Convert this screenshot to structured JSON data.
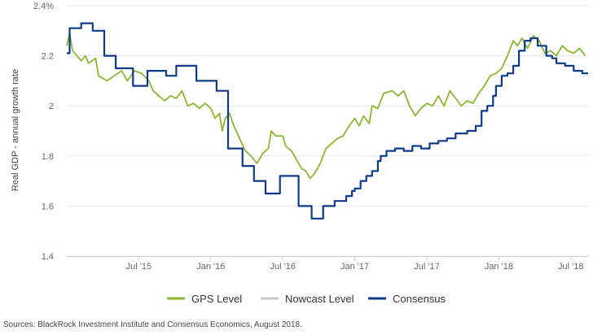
{
  "chart_data": {
    "type": "line",
    "title": "",
    "xlabel": "",
    "ylabel": "Real GDP - annual growth rate",
    "ylim": [
      1.4,
      2.4
    ],
    "xlim": [
      2015.0,
      2018.62
    ],
    "y_ticks": [
      1.4,
      1.6,
      1.8,
      2,
      2.2,
      2.4
    ],
    "y_tick_labels": [
      "1.4",
      "1.6",
      "1.8",
      "2",
      "2.2",
      "2.4%"
    ],
    "x_ticks": [
      {
        "x": 2015.5,
        "label": "Jul '15"
      },
      {
        "x": 2016.0,
        "label": "Jan '16"
      },
      {
        "x": 2016.5,
        "label": "Jul '16"
      },
      {
        "x": 2017.0,
        "label": "Jan '17"
      },
      {
        "x": 2017.5,
        "label": "Jul '17"
      },
      {
        "x": 2018.0,
        "label": "Jan '18"
      },
      {
        "x": 2018.5,
        "label": "Jul '18"
      }
    ],
    "grid": "horizontal",
    "legend_position": "bottom-center",
    "series": [
      {
        "name": "GPS Level",
        "color": "#8ab82e",
        "step": false,
        "points": [
          [
            2015.0,
            2.24
          ],
          [
            2015.02,
            2.29
          ],
          [
            2015.04,
            2.22
          ],
          [
            2015.07,
            2.2
          ],
          [
            2015.1,
            2.18
          ],
          [
            2015.13,
            2.2
          ],
          [
            2015.15,
            2.17
          ],
          [
            2015.2,
            2.19
          ],
          [
            2015.22,
            2.12
          ],
          [
            2015.28,
            2.1
          ],
          [
            2015.33,
            2.12
          ],
          [
            2015.38,
            2.14
          ],
          [
            2015.42,
            2.1
          ],
          [
            2015.47,
            2.14
          ],
          [
            2015.52,
            2.13
          ],
          [
            2015.57,
            2.1
          ],
          [
            2015.6,
            2.06
          ],
          [
            2015.64,
            2.04
          ],
          [
            2015.68,
            2.02
          ],
          [
            2015.72,
            2.04
          ],
          [
            2015.76,
            2.03
          ],
          [
            2015.8,
            2.06
          ],
          [
            2015.84,
            2.0
          ],
          [
            2015.88,
            2.01
          ],
          [
            2015.92,
            1.99
          ],
          [
            2015.96,
            2.01
          ],
          [
            2016.0,
            1.99
          ],
          [
            2016.03,
            1.95
          ],
          [
            2016.06,
            1.97
          ],
          [
            2016.08,
            1.9
          ],
          [
            2016.1,
            1.95
          ],
          [
            2016.13,
            1.97
          ],
          [
            2016.16,
            1.92
          ],
          [
            2016.2,
            1.87
          ],
          [
            2016.24,
            1.82
          ],
          [
            2016.28,
            1.8
          ],
          [
            2016.32,
            1.77
          ],
          [
            2016.36,
            1.81
          ],
          [
            2016.4,
            1.83
          ],
          [
            2016.42,
            1.9
          ],
          [
            2016.45,
            1.88
          ],
          [
            2016.5,
            1.88
          ],
          [
            2016.52,
            1.84
          ],
          [
            2016.56,
            1.82
          ],
          [
            2016.6,
            1.78
          ],
          [
            2016.63,
            1.75
          ],
          [
            2016.66,
            1.74
          ],
          [
            2016.69,
            1.71
          ],
          [
            2016.72,
            1.73
          ],
          [
            2016.76,
            1.77
          ],
          [
            2016.8,
            1.83
          ],
          [
            2016.84,
            1.85
          ],
          [
            2016.88,
            1.87
          ],
          [
            2016.92,
            1.88
          ],
          [
            2016.96,
            1.92
          ],
          [
            2017.0,
            1.95
          ],
          [
            2017.03,
            1.92
          ],
          [
            2017.06,
            1.96
          ],
          [
            2017.1,
            1.93
          ],
          [
            2017.12,
            2.0
          ],
          [
            2017.16,
            1.99
          ],
          [
            2017.2,
            2.05
          ],
          [
            2017.26,
            2.06
          ],
          [
            2017.3,
            2.04
          ],
          [
            2017.34,
            2.06
          ],
          [
            2017.38,
            2.0
          ],
          [
            2017.42,
            1.96
          ],
          [
            2017.46,
            1.99
          ],
          [
            2017.5,
            2.01
          ],
          [
            2017.54,
            2.0
          ],
          [
            2017.58,
            2.04
          ],
          [
            2017.62,
            2.0
          ],
          [
            2017.66,
            2.06
          ],
          [
            2017.7,
            2.03
          ],
          [
            2017.74,
            2.0
          ],
          [
            2017.78,
            2.02
          ],
          [
            2017.82,
            2.01
          ],
          [
            2017.86,
            2.05
          ],
          [
            2017.9,
            2.08
          ],
          [
            2017.94,
            2.12
          ],
          [
            2017.98,
            2.13
          ],
          [
            2018.02,
            2.15
          ],
          [
            2018.06,
            2.2
          ],
          [
            2018.1,
            2.26
          ],
          [
            2018.13,
            2.24
          ],
          [
            2018.16,
            2.27
          ],
          [
            2018.2,
            2.23
          ],
          [
            2018.24,
            2.28
          ],
          [
            2018.28,
            2.26
          ],
          [
            2018.32,
            2.21
          ],
          [
            2018.36,
            2.22
          ],
          [
            2018.4,
            2.2
          ],
          [
            2018.44,
            2.24
          ],
          [
            2018.48,
            2.22
          ],
          [
            2018.52,
            2.21
          ],
          [
            2018.56,
            2.23
          ],
          [
            2018.6,
            2.2
          ]
        ]
      },
      {
        "name": "Nowcast Level",
        "color": "#c8c8c8",
        "step": false,
        "points": []
      },
      {
        "name": "Consensus",
        "color": "#0d3a8c",
        "step": true,
        "points": [
          [
            2015.0,
            2.21
          ],
          [
            2015.02,
            2.31
          ],
          [
            2015.1,
            2.33
          ],
          [
            2015.18,
            2.3
          ],
          [
            2015.26,
            2.2
          ],
          [
            2015.34,
            2.15
          ],
          [
            2015.46,
            2.08
          ],
          [
            2015.56,
            2.14
          ],
          [
            2015.69,
            2.12
          ],
          [
            2015.76,
            2.16
          ],
          [
            2015.9,
            2.1
          ],
          [
            2016.04,
            2.06
          ],
          [
            2016.12,
            1.83
          ],
          [
            2016.22,
            1.76
          ],
          [
            2016.3,
            1.7
          ],
          [
            2016.38,
            1.65
          ],
          [
            2016.48,
            1.72
          ],
          [
            2016.61,
            1.6
          ],
          [
            2016.7,
            1.55
          ],
          [
            2016.78,
            1.6
          ],
          [
            2016.86,
            1.62
          ],
          [
            2016.94,
            1.64
          ],
          [
            2016.98,
            1.66
          ],
          [
            2017.0,
            1.67
          ],
          [
            2017.04,
            1.7
          ],
          [
            2017.08,
            1.72
          ],
          [
            2017.12,
            1.74
          ],
          [
            2017.16,
            1.78
          ],
          [
            2017.18,
            1.8
          ],
          [
            2017.22,
            1.82
          ],
          [
            2017.28,
            1.83
          ],
          [
            2017.34,
            1.82
          ],
          [
            2017.4,
            1.84
          ],
          [
            2017.46,
            1.83
          ],
          [
            2017.52,
            1.85
          ],
          [
            2017.58,
            1.86
          ],
          [
            2017.64,
            1.87
          ],
          [
            2017.7,
            1.89
          ],
          [
            2017.78,
            1.9
          ],
          [
            2017.84,
            1.92
          ],
          [
            2017.88,
            1.98
          ],
          [
            2017.92,
            2.0
          ],
          [
            2017.96,
            2.04
          ],
          [
            2017.98,
            2.08
          ],
          [
            2018.02,
            2.12
          ],
          [
            2018.06,
            2.13
          ],
          [
            2018.1,
            2.16
          ],
          [
            2018.14,
            2.22
          ],
          [
            2018.18,
            2.26
          ],
          [
            2018.22,
            2.27
          ],
          [
            2018.27,
            2.24
          ],
          [
            2018.33,
            2.2
          ],
          [
            2018.37,
            2.19
          ],
          [
            2018.4,
            2.17
          ],
          [
            2018.46,
            2.16
          ],
          [
            2018.52,
            2.14
          ],
          [
            2018.58,
            2.13
          ],
          [
            2018.62,
            2.13
          ]
        ]
      }
    ],
    "source": "Sources: BlackRock Investment Institute and Consensus Economics, August 2018."
  }
}
